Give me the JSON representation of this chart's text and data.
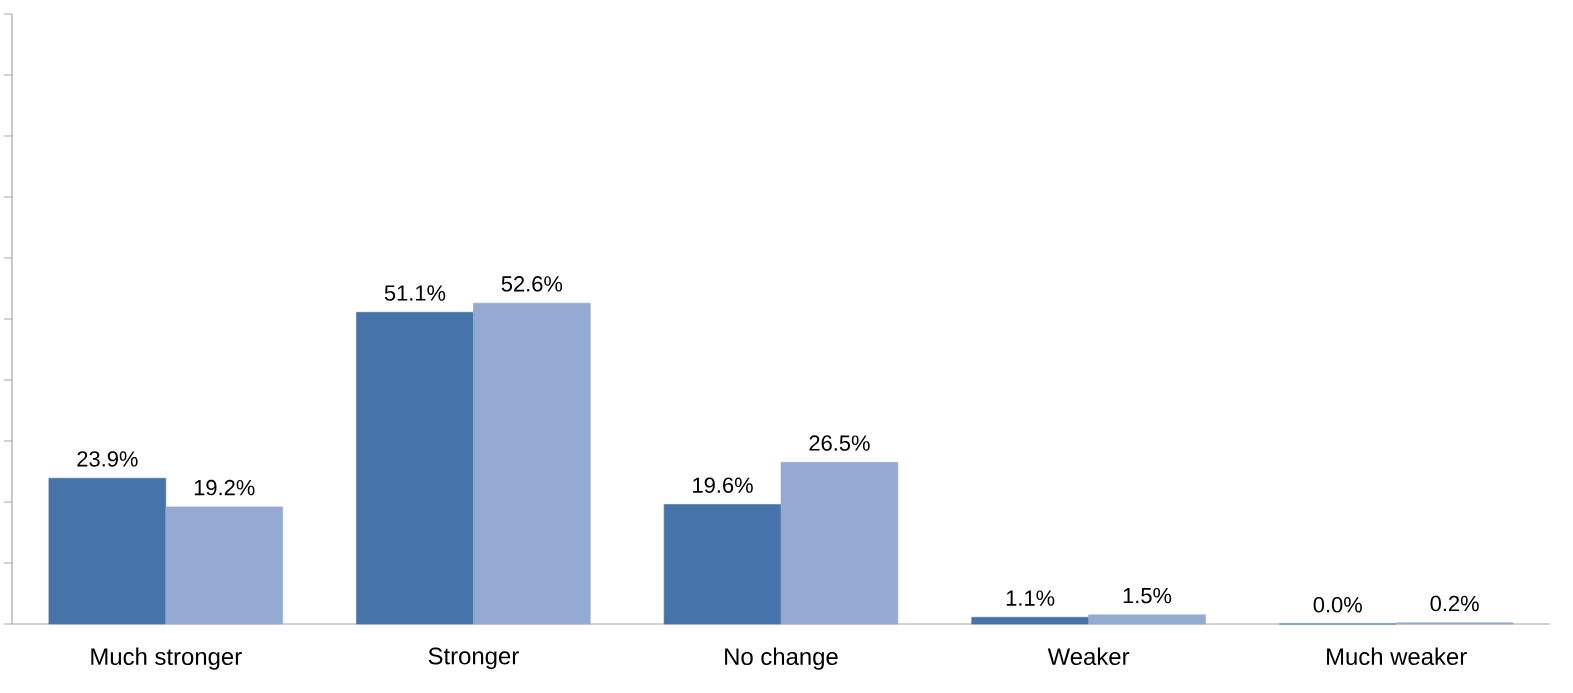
{
  "chart_data": {
    "type": "bar",
    "categories": [
      "Much stronger",
      "Stronger",
      "No change",
      "Weaker",
      "Much weaker"
    ],
    "series": [
      {
        "color": "#4674a8",
        "values": [
          23.9,
          51.1,
          19.6,
          1.1,
          0.0
        ],
        "value_labels": [
          "23.9%",
          "51.1%",
          "19.6%",
          "1.1%",
          "0.0%"
        ]
      },
      {
        "color": "#95aad2",
        "values": [
          19.2,
          52.6,
          26.5,
          1.5,
          0.2
        ],
        "value_labels": [
          "19.2%",
          "52.6%",
          "26.5%",
          "1.5%",
          "0.2%"
        ]
      }
    ],
    "ylim": [
      0,
      100
    ],
    "yticks": [
      {
        "value": 0,
        "label": null
      },
      {
        "value": 10,
        "label": null
      },
      {
        "value": 20,
        "label": null
      },
      {
        "value": 30,
        "label": null
      },
      {
        "value": 40,
        "label": null
      },
      {
        "value": 50,
        "label": null
      },
      {
        "value": 60,
        "label": null
      },
      {
        "value": 70,
        "label": null
      },
      {
        "value": 80,
        "label": null
      },
      {
        "value": 90,
        "label": null
      },
      {
        "value": 100,
        "label": null
      }
    ],
    "tick_labels": "x",
    "grid": false
  }
}
